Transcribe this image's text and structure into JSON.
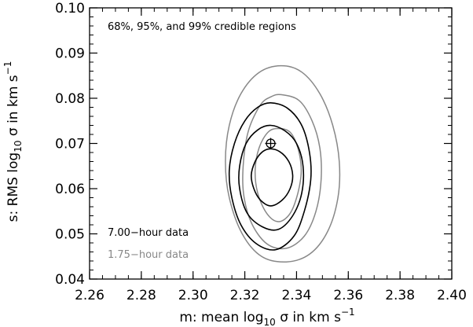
{
  "chart_data": {
    "type": "contour",
    "title": "",
    "annotation": "68%, 95%, and 99% credible regions",
    "xlabel": {
      "prefix": "m: mean log",
      "sub": "10",
      "suffix": " σ in km s",
      "sup": "−1"
    },
    "ylabel": {
      "prefix": "s: RMS log",
      "sub": "10",
      "suffix": " σ in km s",
      "sup": "−1"
    },
    "xlim": [
      2.26,
      2.4
    ],
    "ylim": [
      0.04,
      0.1
    ],
    "xticks": [
      "2.26",
      "2.28",
      "2.30",
      "2.32",
      "2.34",
      "2.36",
      "2.38",
      "2.40"
    ],
    "yticks": [
      "0.04",
      "0.05",
      "0.06",
      "0.07",
      "0.08",
      "0.09",
      "0.10"
    ],
    "marker": {
      "x": 2.33,
      "y": 0.07,
      "symbol": "circle-plus"
    },
    "series": [
      {
        "name": "7.00-hour data",
        "color": "#000000",
        "contours": [
          {
            "level": "68%",
            "points": [
              [
                2.3295,
                0.0688
              ],
              [
                2.3335,
                0.0682
              ],
              [
                2.337,
                0.066
              ],
              [
                2.3385,
                0.063
              ],
              [
                2.3375,
                0.06
              ],
              [
                2.3345,
                0.0575
              ],
              [
                2.33,
                0.0562
              ],
              [
                2.326,
                0.0575
              ],
              [
                2.3235,
                0.06
              ],
              [
                2.3225,
                0.063
              ],
              [
                2.324,
                0.066
              ],
              [
                2.3265,
                0.068
              ]
            ]
          },
          {
            "level": "95%",
            "points": [
              [
                2.33,
                0.074
              ],
              [
                2.3355,
                0.0728
              ],
              [
                2.34,
                0.07
              ],
              [
                2.3425,
                0.065
              ],
              [
                2.342,
                0.059
              ],
              [
                2.3385,
                0.054
              ],
              [
                2.333,
                0.051
              ],
              [
                2.327,
                0.0515
              ],
              [
                2.321,
                0.0545
              ],
              [
                2.318,
                0.06
              ],
              [
                2.318,
                0.065
              ],
              [
                2.3205,
                0.07
              ],
              [
                2.325,
                0.073
              ]
            ]
          },
          {
            "level": "99%",
            "points": [
              [
                2.33,
                0.079
              ],
              [
                2.3365,
                0.0778
              ],
              [
                2.342,
                0.074
              ],
              [
                2.345,
                0.068
              ],
              [
                2.3455,
                0.062
              ],
              [
                2.343,
                0.055
              ],
              [
                2.339,
                0.0495
              ],
              [
                2.332,
                0.0465
              ],
              [
                2.3245,
                0.0478
              ],
              [
                2.3185,
                0.052
              ],
              [
                2.315,
                0.058
              ],
              [
                2.314,
                0.064
              ],
              [
                2.316,
                0.07
              ],
              [
                2.32,
                0.075
              ],
              [
                2.325,
                0.078
              ]
            ]
          }
        ]
      },
      {
        "name": "1.75-hour data",
        "color": "#888888",
        "contours": [
          {
            "level": "68%",
            "points": [
              [
                2.333,
                0.0733
              ],
              [
                2.3375,
                0.0725
              ],
              [
                2.3405,
                0.069
              ],
              [
                2.3418,
                0.064
              ],
              [
                2.3405,
                0.059
              ],
              [
                2.3375,
                0.0545
              ],
              [
                2.333,
                0.0527
              ],
              [
                2.3285,
                0.0545
              ],
              [
                2.325,
                0.059
              ],
              [
                2.324,
                0.064
              ],
              [
                2.3255,
                0.069
              ],
              [
                2.329,
                0.0725
              ]
            ]
          },
          {
            "level": "95%",
            "points": [
              [
                2.334,
                0.0808
              ],
              [
                2.341,
                0.0795
              ],
              [
                2.346,
                0.075
              ],
              [
                2.349,
                0.069
              ],
              [
                2.3495,
                0.062
              ],
              [
                2.3475,
                0.055
              ],
              [
                2.343,
                0.0495
              ],
              [
                2.336,
                0.0468
              ],
              [
                2.3285,
                0.0478
              ],
              [
                2.3225,
                0.0525
              ],
              [
                2.3195,
                0.059
              ],
              [
                2.3195,
                0.066
              ],
              [
                2.3215,
                0.073
              ],
              [
                2.326,
                0.0785
              ],
              [
                2.33,
                0.0803
              ]
            ]
          },
          {
            "level": "99%",
            "points": [
              [
                2.334,
                0.0872
              ],
              [
                2.342,
                0.0858
              ],
              [
                2.349,
                0.081
              ],
              [
                2.354,
                0.074
              ],
              [
                2.3565,
                0.066
              ],
              [
                2.356,
                0.058
              ],
              [
                2.352,
                0.0505
              ],
              [
                2.345,
                0.0455
              ],
              [
                2.336,
                0.0438
              ],
              [
                2.3265,
                0.045
              ],
              [
                2.319,
                0.05
              ],
              [
                2.314,
                0.058
              ],
              [
                2.3125,
                0.066
              ],
              [
                2.314,
                0.074
              ],
              [
                2.3185,
                0.081
              ],
              [
                2.3255,
                0.0857
              ]
            ]
          }
        ]
      }
    ],
    "legend": {
      "placement": "bottom-left",
      "entries": [
        {
          "label": "7.00−hour data",
          "color": "#000000"
        },
        {
          "label": "1.75−hour data",
          "color": "#888888"
        }
      ]
    },
    "grid": false
  }
}
